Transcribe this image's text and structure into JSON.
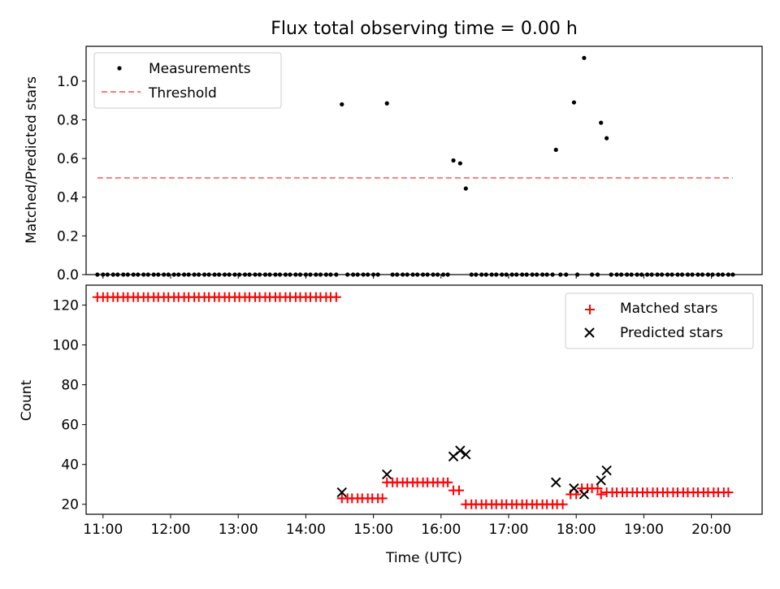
{
  "chart_data": [
    {
      "type": "scatter",
      "title": "Flux total observing time = 0.00 h",
      "xlabel": "",
      "ylabel": "Matched/Predicted stars",
      "xlim": [
        "10:45",
        "20:45"
      ],
      "ylim": [
        0,
        1.18
      ],
      "grid": false,
      "legend_position": "top-left",
      "series": [
        {
          "name": "Measurements",
          "color": "#000000",
          "marker": "dot",
          "points": [
            [
              "14:32",
              0.88
            ],
            [
              "15:12",
              0.885
            ],
            [
              "16:11",
              0.59
            ],
            [
              "16:17",
              0.575
            ],
            [
              "16:22",
              0.445
            ],
            [
              "17:42",
              0.645
            ],
            [
              "17:58",
              0.89
            ],
            [
              "18:07",
              1.12
            ],
            [
              "18:22",
              0.785
            ],
            [
              "18:27",
              0.705
            ]
          ],
          "zero_points": [
            "10:55",
            "11:00",
            "11:04",
            "11:09",
            "11:13",
            "11:18",
            "11:22",
            "11:27",
            "11:31",
            "11:36",
            "11:40",
            "11:45",
            "11:49",
            "11:54",
            "11:58",
            "12:03",
            "12:07",
            "12:12",
            "12:16",
            "12:21",
            "12:25",
            "12:30",
            "12:34",
            "12:39",
            "12:43",
            "12:48",
            "12:52",
            "12:57",
            "13:01",
            "13:06",
            "13:10",
            "13:15",
            "13:19",
            "13:24",
            "13:28",
            "13:33",
            "13:37",
            "13:42",
            "13:46",
            "13:51",
            "13:55",
            "14:00",
            "14:04",
            "14:09",
            "14:13",
            "14:18",
            "14:22",
            "14:27",
            "14:37",
            "14:42",
            "14:46",
            "14:51",
            "14:55",
            "15:00",
            "15:04",
            "15:17",
            "15:21",
            "15:26",
            "15:30",
            "15:35",
            "15:39",
            "15:44",
            "15:48",
            "15:53",
            "15:57",
            "16:02",
            "16:06",
            "16:27",
            "16:31",
            "16:36",
            "16:40",
            "16:45",
            "16:49",
            "16:54",
            "16:58",
            "17:03",
            "17:07",
            "17:12",
            "17:16",
            "17:21",
            "17:25",
            "17:30",
            "17:34",
            "17:39",
            "17:46",
            "17:51",
            "18:01",
            "18:14",
            "18:19",
            "18:31",
            "18:36",
            "18:40",
            "18:45",
            "18:49",
            "18:54",
            "18:58",
            "19:03",
            "19:07",
            "19:12",
            "19:16",
            "19:21",
            "19:25",
            "19:30",
            "19:34",
            "19:39",
            "19:43",
            "19:48",
            "19:52",
            "19:57",
            "20:01",
            "20:06",
            "20:10",
            "20:15",
            "20:19"
          ]
        },
        {
          "name": "Threshold",
          "color": "#f08080",
          "style": "dashed",
          "points": [
            [
              "10:55",
              0.5
            ],
            [
              "20:19",
              0.5
            ]
          ]
        }
      ],
      "xticks": [
        "11:00",
        "12:00",
        "13:00",
        "14:00",
        "15:00",
        "16:00",
        "17:00",
        "18:00",
        "19:00",
        "20:00"
      ],
      "yticks": [
        "0.0",
        "0.2",
        "0.4",
        "0.6",
        "0.8",
        "1.0"
      ]
    },
    {
      "type": "scatter",
      "title": "",
      "xlabel": "Time (UTC)",
      "ylabel": "Count",
      "xlim": [
        "10:45",
        "20:45"
      ],
      "ylim": [
        15,
        130
      ],
      "grid": false,
      "legend_position": "top-right",
      "series": [
        {
          "name": "Matched stars",
          "color": "#ff0000",
          "marker": "plus",
          "segments": [
            {
              "from": "10:55",
              "to": "14:27",
              "step_min": 4.5,
              "value": 124
            },
            {
              "from": "14:32",
              "to": "15:08",
              "step_min": 4.5,
              "value": 23
            },
            {
              "from": "15:12",
              "to": "16:06",
              "step_min": 4.5,
              "value": 31
            },
            {
              "from": "16:11",
              "to": "16:17",
              "step_min": 4.5,
              "value": 27
            },
            {
              "from": "16:22",
              "to": "17:51",
              "step_min": 4.5,
              "value": 20
            },
            {
              "from": "17:55",
              "to": "18:01",
              "step_min": 4.5,
              "value": 25
            },
            {
              "from": "18:05",
              "to": "18:19",
              "step_min": 4.5,
              "value": 28
            },
            {
              "from": "18:22",
              "to": "18:22",
              "step_min": 4.5,
              "value": 25
            },
            {
              "from": "18:27",
              "to": "20:19",
              "step_min": 4.5,
              "value": 26
            }
          ]
        },
        {
          "name": "Predicted stars",
          "color": "#000000",
          "marker": "x",
          "points": [
            [
              "14:32",
              26
            ],
            [
              "15:12",
              35
            ],
            [
              "16:11",
              44
            ],
            [
              "16:17",
              47
            ],
            [
              "16:22",
              45
            ],
            [
              "17:42",
              31
            ],
            [
              "17:58",
              28
            ],
            [
              "18:07",
              25
            ],
            [
              "18:22",
              32
            ],
            [
              "18:27",
              37
            ]
          ]
        }
      ],
      "xticks": [
        "11:00",
        "12:00",
        "13:00",
        "14:00",
        "15:00",
        "16:00",
        "17:00",
        "18:00",
        "19:00",
        "20:00"
      ],
      "yticks": [
        "20",
        "40",
        "60",
        "80",
        "100",
        "120"
      ]
    }
  ]
}
